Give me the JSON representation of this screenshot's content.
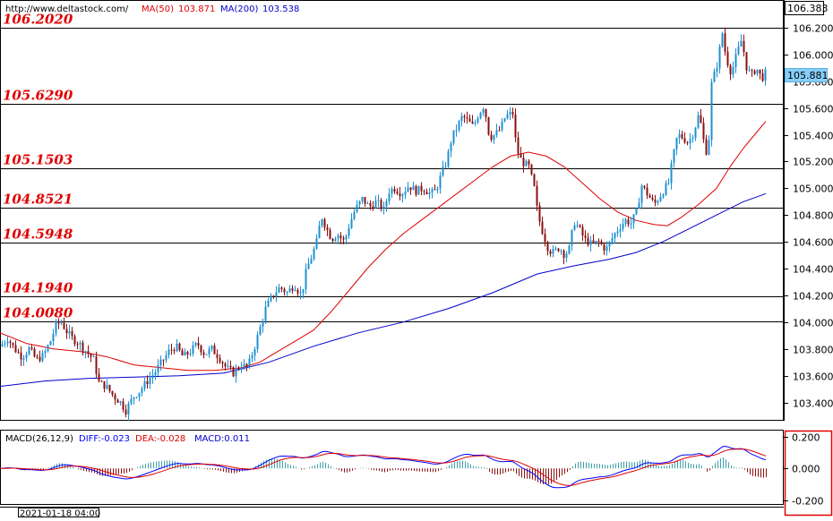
{
  "header": {
    "url": "http://www.deltastock.com/",
    "ma50_label": "MA(50)",
    "ma50_value": "103.871",
    "ma200_label": "MA(200)",
    "ma200_value": "103.538",
    "top_price": "106.383"
  },
  "price_box": {
    "value": "105.881"
  },
  "colors": {
    "bull": "#1e90d2",
    "bear": "#8a1010",
    "ma50": "#e00000",
    "ma200": "#0000cc",
    "levels": "#000000",
    "label": "#e00000",
    "macd_diff": "#0000ff",
    "macd_dea": "#e00000",
    "hist_pos": "#40a0a8",
    "hist_neg": "#8a1010",
    "macd_box": "#e00000"
  },
  "levels": [
    {
      "label": "106.2020",
      "value": 106.202
    },
    {
      "label": "105.6290",
      "value": 105.629
    },
    {
      "label": "105.1503",
      "value": 105.1503
    },
    {
      "label": "104.8521",
      "value": 104.8521
    },
    {
      "label": "104.5948",
      "value": 104.5948
    },
    {
      "label": "104.1940",
      "value": 104.194
    },
    {
      "label": "104.0080",
      "value": 104.008
    }
  ],
  "macd": {
    "title": "MACD(26,12,9)",
    "diff_label": "DIFF:-0.023",
    "dea_label": "DEA:-0.028",
    "macd_label": "MACD:0.011",
    "ticks": [
      {
        "label": "0.200",
        "value": 0.2
      },
      {
        "label": "0.000",
        "value": 0.0
      },
      {
        "label": "-0.200",
        "value": -0.2
      }
    ],
    "ylim": [
      -0.225,
      0.24
    ]
  },
  "date_label": "2021-01-18 04:00",
  "chart_data": {
    "type": "candlestick",
    "ylim": [
      103.27,
      106.4
    ],
    "y_ticks": [
      {
        "label": "106.200",
        "value": 106.2
      },
      {
        "label": "106.000",
        "value": 106.0
      },
      {
        "label": "105.800",
        "value": 105.8
      },
      {
        "label": "105.600",
        "value": 105.6
      },
      {
        "label": "105.400",
        "value": 105.4
      },
      {
        "label": "105.200",
        "value": 105.2
      },
      {
        "label": "105.000",
        "value": 105.0
      },
      {
        "label": "104.800",
        "value": 104.8
      },
      {
        "label": "104.600",
        "value": 104.6
      },
      {
        "label": "104.400",
        "value": 104.4
      },
      {
        "label": "104.200",
        "value": 104.2
      },
      {
        "label": "104.000",
        "value": 104.0
      },
      {
        "label": "103.800",
        "value": 103.8
      },
      {
        "label": "103.600",
        "value": 103.6
      },
      {
        "label": "103.400",
        "value": 103.4
      }
    ],
    "price_path": [
      [
        0,
        103.82
      ],
      [
        8,
        103.88
      ],
      [
        16,
        103.8
      ],
      [
        24,
        103.74
      ],
      [
        32,
        103.8
      ],
      [
        40,
        103.72
      ],
      [
        48,
        103.75
      ],
      [
        56,
        103.86
      ],
      [
        62,
        103.98
      ],
      [
        68,
        104.0
      ],
      [
        74,
        103.93
      ],
      [
        80,
        103.88
      ],
      [
        88,
        103.84
      ],
      [
        96,
        103.78
      ],
      [
        104,
        103.72
      ],
      [
        110,
        103.55
      ],
      [
        118,
        103.52
      ],
      [
        126,
        103.45
      ],
      [
        134,
        103.4
      ],
      [
        140,
        103.34
      ],
      [
        148,
        103.44
      ],
      [
        156,
        103.49
      ],
      [
        164,
        103.56
      ],
      [
        172,
        103.62
      ],
      [
        180,
        103.7
      ],
      [
        188,
        103.78
      ],
      [
        196,
        103.82
      ],
      [
        204,
        103.74
      ],
      [
        212,
        103.78
      ],
      [
        220,
        103.84
      ],
      [
        228,
        103.76
      ],
      [
        236,
        103.8
      ],
      [
        244,
        103.74
      ],
      [
        252,
        103.66
      ],
      [
        260,
        103.62
      ],
      [
        268,
        103.68
      ],
      [
        276,
        103.66
      ],
      [
        284,
        103.82
      ],
      [
        290,
        103.96
      ],
      [
        296,
        104.1
      ],
      [
        304,
        104.2
      ],
      [
        312,
        104.26
      ],
      [
        320,
        104.22
      ],
      [
        328,
        104.28
      ],
      [
        336,
        104.2
      ],
      [
        342,
        104.4
      ],
      [
        348,
        104.5
      ],
      [
        354,
        104.62
      ],
      [
        358,
        104.8
      ],
      [
        364,
        104.7
      ],
      [
        370,
        104.62
      ],
      [
        376,
        104.66
      ],
      [
        384,
        104.6
      ],
      [
        390,
        104.74
      ],
      [
        396,
        104.84
      ],
      [
        404,
        104.92
      ],
      [
        412,
        104.86
      ],
      [
        420,
        104.9
      ],
      [
        428,
        104.84
      ],
      [
        434,
        104.98
      ],
      [
        440,
        105.0
      ],
      [
        448,
        104.96
      ],
      [
        456,
        105.02
      ],
      [
        464,
        104.98
      ],
      [
        472,
        105.0
      ],
      [
        480,
        104.96
      ],
      [
        486,
        104.98
      ],
      [
        492,
        105.1
      ],
      [
        498,
        105.2
      ],
      [
        504,
        105.38
      ],
      [
        510,
        105.46
      ],
      [
        516,
        105.54
      ],
      [
        522,
        105.5
      ],
      [
        528,
        105.46
      ],
      [
        534,
        105.56
      ],
      [
        540,
        105.62
      ],
      [
        546,
        105.38
      ],
      [
        552,
        105.4
      ],
      [
        558,
        105.44
      ],
      [
        564,
        105.54
      ],
      [
        572,
        105.56
      ],
      [
        576,
        105.3
      ],
      [
        582,
        105.2
      ],
      [
        590,
        105.16
      ],
      [
        596,
        105.0
      ],
      [
        600,
        104.8
      ],
      [
        606,
        104.66
      ],
      [
        612,
        104.54
      ],
      [
        618,
        104.52
      ],
      [
        624,
        104.56
      ],
      [
        630,
        104.5
      ],
      [
        636,
        104.56
      ],
      [
        640,
        104.76
      ],
      [
        646,
        104.7
      ],
      [
        652,
        104.62
      ],
      [
        660,
        104.58
      ],
      [
        668,
        104.6
      ],
      [
        676,
        104.54
      ],
      [
        684,
        104.64
      ],
      [
        692,
        104.72
      ],
      [
        698,
        104.76
      ],
      [
        704,
        104.74
      ],
      [
        710,
        104.82
      ],
      [
        716,
        105.02
      ],
      [
        722,
        104.96
      ],
      [
        730,
        104.88
      ],
      [
        738,
        104.96
      ],
      [
        746,
        105.04
      ],
      [
        750,
        105.2
      ],
      [
        756,
        105.4
      ],
      [
        762,
        105.38
      ],
      [
        768,
        105.34
      ],
      [
        774,
        105.42
      ],
      [
        780,
        105.56
      ],
      [
        786,
        105.32
      ],
      [
        790,
        105.24
      ],
      [
        794,
        105.78
      ],
      [
        800,
        105.92
      ],
      [
        806,
        106.16
      ],
      [
        810,
        105.98
      ],
      [
        816,
        105.86
      ],
      [
        822,
        106.0
      ],
      [
        828,
        106.12
      ],
      [
        832,
        105.92
      ],
      [
        838,
        105.84
      ],
      [
        844,
        105.9
      ],
      [
        850,
        105.82
      ],
      [
        856,
        105.88
      ]
    ],
    "ma50": [
      [
        0,
        103.92
      ],
      [
        30,
        103.84
      ],
      [
        60,
        103.8
      ],
      [
        90,
        103.78
      ],
      [
        120,
        103.74
      ],
      [
        150,
        103.68
      ],
      [
        180,
        103.66
      ],
      [
        210,
        103.64
      ],
      [
        240,
        103.64
      ],
      [
        270,
        103.66
      ],
      [
        290,
        103.7
      ],
      [
        310,
        103.78
      ],
      [
        330,
        103.86
      ],
      [
        350,
        103.94
      ],
      [
        370,
        104.08
      ],
      [
        390,
        104.24
      ],
      [
        410,
        104.4
      ],
      [
        430,
        104.54
      ],
      [
        450,
        104.66
      ],
      [
        470,
        104.76
      ],
      [
        490,
        104.86
      ],
      [
        510,
        104.96
      ],
      [
        530,
        105.06
      ],
      [
        550,
        105.16
      ],
      [
        570,
        105.24
      ],
      [
        590,
        105.27
      ],
      [
        610,
        105.24
      ],
      [
        630,
        105.16
      ],
      [
        650,
        105.04
      ],
      [
        670,
        104.92
      ],
      [
        690,
        104.82
      ],
      [
        710,
        104.76
      ],
      [
        730,
        104.73
      ],
      [
        745,
        104.72
      ],
      [
        760,
        104.78
      ],
      [
        780,
        104.88
      ],
      [
        800,
        105.0
      ],
      [
        815,
        105.16
      ],
      [
        830,
        105.3
      ],
      [
        845,
        105.42
      ],
      [
        855,
        105.5
      ]
    ],
    "ma200": [
      [
        0,
        103.52
      ],
      [
        50,
        103.56
      ],
      [
        100,
        103.58
      ],
      [
        150,
        103.59
      ],
      [
        200,
        103.6
      ],
      [
        250,
        103.62
      ],
      [
        300,
        103.7
      ],
      [
        350,
        103.82
      ],
      [
        400,
        103.92
      ],
      [
        450,
        104.0
      ],
      [
        500,
        104.1
      ],
      [
        550,
        104.22
      ],
      [
        600,
        104.36
      ],
      [
        640,
        104.42
      ],
      [
        680,
        104.47
      ],
      [
        710,
        104.52
      ],
      [
        740,
        104.6
      ],
      [
        770,
        104.7
      ],
      [
        800,
        104.8
      ],
      [
        830,
        104.9
      ],
      [
        855,
        104.96
      ]
    ]
  }
}
